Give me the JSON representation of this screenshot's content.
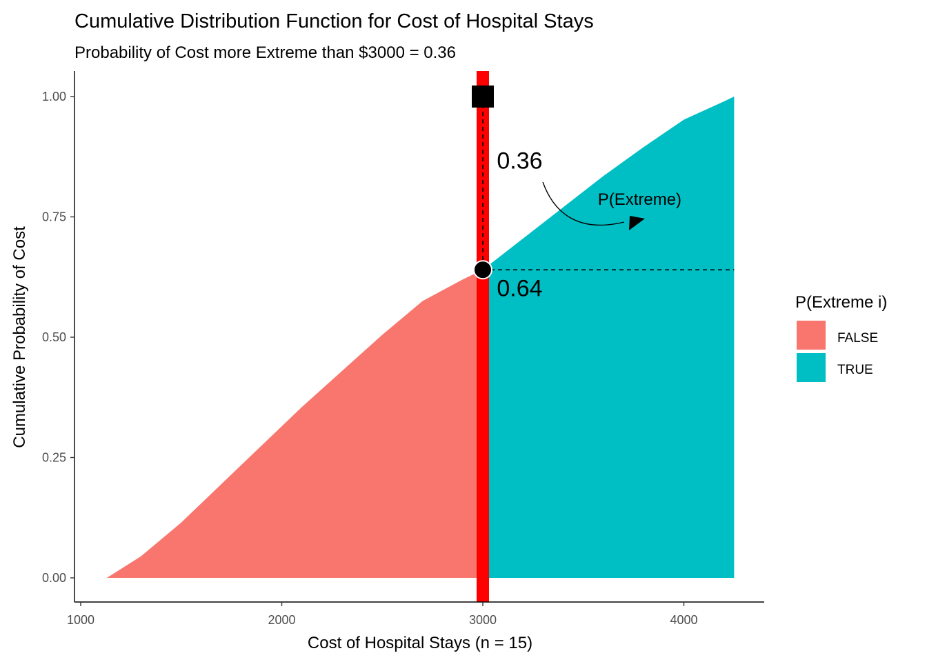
{
  "chart_data": {
    "type": "area",
    "title": "Cumulative Distribution Function for Cost of Hospital Stays",
    "subtitle": "Probability of Cost more Extreme than $3000 = 0.36",
    "xlabel": "Cost of Hospital Stays (n = 15)",
    "ylabel": "Cumulative Probability of Cost",
    "xlim": [
      1000,
      4400
    ],
    "ylim": [
      0,
      1
    ],
    "x_ticks": [
      1000,
      2000,
      3000,
      4000
    ],
    "x_tick_labels": [
      "1000",
      "2000",
      "3000",
      "4000"
    ],
    "y_ticks": [
      0,
      0.25,
      0.5,
      0.75,
      1
    ],
    "y_tick_labels": [
      "0.00",
      "0.25",
      "0.50",
      "0.75",
      "1.00"
    ],
    "grid": false,
    "legend": {
      "title": "P(Extreme i)",
      "position": "right",
      "entries": [
        {
          "label": "FALSE",
          "color": "#F8766D"
        },
        {
          "label": "TRUE",
          "color": "#00BFC4"
        }
      ]
    },
    "threshold_x": 3000,
    "threshold_color": "#FF0000",
    "cdf_at_threshold": 0.64,
    "series": [
      {
        "name": "FALSE",
        "color": "#F8766D",
        "x": [
          1130,
          1300,
          1500,
          1700,
          1900,
          2100,
          2300,
          2500,
          2700,
          2900,
          3000
        ],
        "y": [
          0.0,
          0.045,
          0.115,
          0.195,
          0.275,
          0.355,
          0.43,
          0.505,
          0.575,
          0.62,
          0.64
        ]
      },
      {
        "name": "TRUE",
        "color": "#00BFC4",
        "x": [
          3000,
          3200,
          3400,
          3600,
          3800,
          4000,
          4200,
          4250
        ],
        "y": [
          0.64,
          0.705,
          0.77,
          0.835,
          0.895,
          0.952,
          0.99,
          1.0
        ]
      }
    ],
    "markers": [
      {
        "shape": "circle",
        "x": 3000,
        "y": 0.64
      },
      {
        "shape": "square",
        "x": 3000,
        "y": 1.0
      }
    ],
    "annotations": [
      {
        "text": "0.36",
        "x": 3070,
        "y": 0.85
      },
      {
        "text": "0.64",
        "x": 3070,
        "y": 0.585
      },
      {
        "text": "P(Extreme)",
        "x": 3780,
        "y": 0.775
      }
    ]
  }
}
